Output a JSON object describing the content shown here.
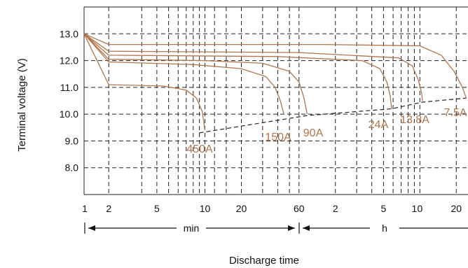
{
  "chart_data": {
    "type": "line",
    "title": "",
    "xlabel": "Discharge time",
    "ylabel": "Terminal voltage (V)",
    "y_axis": {
      "range": [
        7.0,
        14.0
      ],
      "ticks": [
        "8.0",
        "9.0",
        "10.0",
        "11.0",
        "12.0",
        "13.0"
      ]
    },
    "x_axis": {
      "scale": "log",
      "range_minutes": [
        1,
        1500
      ],
      "tick_labels_minutes_segment": [
        "1",
        "2",
        "5",
        "10",
        "20",
        "60"
      ],
      "tick_labels_hours_segment": [
        "2",
        "5",
        "1",
        "0",
        "20"
      ],
      "unit_min": "min",
      "unit_h": "h"
    },
    "grid": true,
    "colors": {
      "curve": "#b2754d",
      "grid": "#222222",
      "cutoff": "#222222"
    },
    "series": [
      {
        "name": "450A",
        "x_minutes": [
          1,
          1.6,
          4.5,
          7,
          8.5,
          9.5,
          10
        ],
        "y": [
          13.0,
          11.1,
          11.05,
          10.9,
          10.6,
          10.1,
          9.4
        ]
      },
      {
        "name": "150A",
        "x_minutes": [
          1,
          1.6,
          8,
          20,
          32,
          38,
          42,
          45
        ],
        "y": [
          13.0,
          11.95,
          11.85,
          11.7,
          11.4,
          11.0,
          10.5,
          10.0
        ]
      },
      {
        "name": "90A",
        "x_minutes": [
          1,
          1.6,
          10,
          30,
          50,
          60,
          66,
          70
        ],
        "y": [
          13.0,
          12.05,
          12.0,
          11.9,
          11.6,
          11.2,
          10.6,
          10.0
        ]
      },
      {
        "name": "24A",
        "x_minutes": [
          1,
          1.6,
          40,
          200,
          280,
          320,
          340,
          350
        ],
        "y": [
          13.0,
          12.2,
          12.15,
          12.0,
          11.7,
          11.2,
          10.7,
          10.2
        ]
      },
      {
        "name": "13.8A",
        "x_minutes": [
          1,
          1.6,
          60,
          400,
          520,
          580,
          620,
          630
        ],
        "y": [
          13.0,
          12.35,
          12.3,
          12.1,
          11.8,
          11.3,
          10.8,
          10.5
        ]
      },
      {
        "name": "7.5A",
        "x_minutes": [
          1,
          1.6,
          100,
          600,
          900,
          1150,
          1350,
          1450
        ],
        "y": [
          13.0,
          12.6,
          12.6,
          12.55,
          12.2,
          11.6,
          11.0,
          10.6
        ]
      }
    ],
    "cutoff_line": {
      "x_minutes": [
        9,
        70,
        350,
        630,
        1450
      ],
      "y": [
        9.3,
        9.95,
        10.2,
        10.45,
        10.6
      ]
    }
  }
}
